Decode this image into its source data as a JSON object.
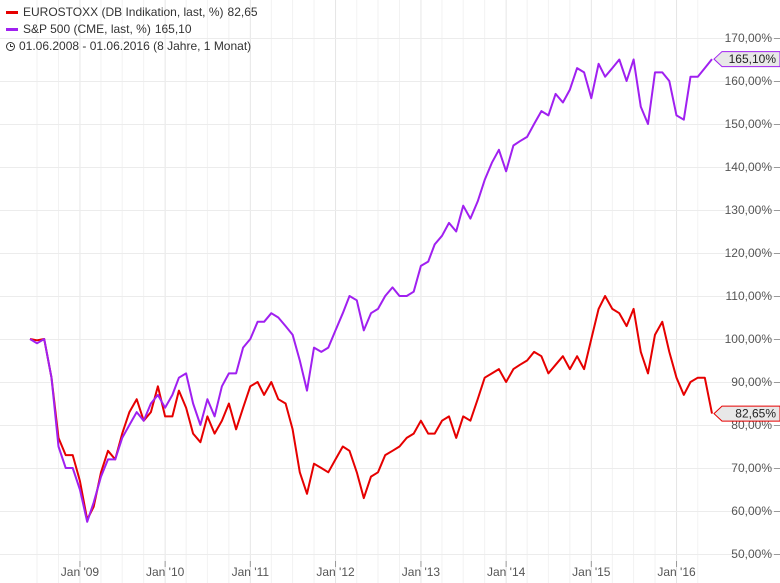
{
  "legend": {
    "series1": {
      "name": "EUROSTOXX (DB Indikation, last, %)",
      "value": "82,65",
      "color": "#e60000"
    },
    "series2": {
      "name": "S&P 500 (CME, last, %)",
      "value": "165,10",
      "color": "#a020f0"
    },
    "period": "01.06.2008 - 01.06.2016 (8 Jahre, 1 Monat)",
    "period_icon": "clock-icon"
  },
  "chart_data": {
    "type": "line",
    "x_ticks": [
      "Jan '09",
      "Jan '10",
      "Jan '11",
      "Jan '12",
      "Jan '13",
      "Jan '14",
      "Jan '15",
      "Jan '16"
    ],
    "y_ticks": [
      "50,00%",
      "60,00%",
      "70,00%",
      "80,00%",
      "90,00%",
      "100,00%",
      "110,00%",
      "120,00%",
      "130,00%",
      "140,00%",
      "150,00%",
      "160,00%",
      "170,00%"
    ],
    "ylim": [
      50,
      170
    ],
    "xlim": [
      "2008-06-01",
      "2016-06-01"
    ],
    "grid": true,
    "series": [
      {
        "name": "EUROSTOXX (DB Indikation, last, %)",
        "color": "#e60000",
        "last_label": "82,65%",
        "points": [
          [
            "2008-06-01",
            100
          ],
          [
            "2008-07-01",
            99.7
          ],
          [
            "2008-08-01",
            100
          ],
          [
            "2008-09-01",
            91
          ],
          [
            "2008-10-01",
            77
          ],
          [
            "2008-11-01",
            73
          ],
          [
            "2008-12-01",
            73
          ],
          [
            "2009-01-01",
            67
          ],
          [
            "2009-02-01",
            58
          ],
          [
            "2009-03-01",
            61
          ],
          [
            "2009-04-01",
            69
          ],
          [
            "2009-05-01",
            74
          ],
          [
            "2009-06-01",
            72
          ],
          [
            "2009-07-01",
            78
          ],
          [
            "2009-08-01",
            83
          ],
          [
            "2009-09-01",
            86
          ],
          [
            "2009-10-01",
            81
          ],
          [
            "2009-11-01",
            83
          ],
          [
            "2009-12-01",
            89
          ],
          [
            "2010-01-01",
            82
          ],
          [
            "2010-02-01",
            82
          ],
          [
            "2010-03-01",
            88
          ],
          [
            "2010-04-01",
            84
          ],
          [
            "2010-05-01",
            78
          ],
          [
            "2010-06-01",
            76
          ],
          [
            "2010-07-01",
            82
          ],
          [
            "2010-08-01",
            78
          ],
          [
            "2010-09-01",
            81
          ],
          [
            "2010-10-01",
            85
          ],
          [
            "2010-11-01",
            79
          ],
          [
            "2010-12-01",
            84
          ],
          [
            "2011-01-01",
            89
          ],
          [
            "2011-02-01",
            90
          ],
          [
            "2011-03-01",
            87
          ],
          [
            "2011-04-01",
            90
          ],
          [
            "2011-05-01",
            86
          ],
          [
            "2011-06-01",
            85
          ],
          [
            "2011-07-01",
            79
          ],
          [
            "2011-08-01",
            69
          ],
          [
            "2011-09-01",
            64
          ],
          [
            "2011-10-01",
            71
          ],
          [
            "2011-11-01",
            70
          ],
          [
            "2011-12-01",
            69
          ],
          [
            "2012-01-01",
            72
          ],
          [
            "2012-02-01",
            75
          ],
          [
            "2012-03-01",
            74
          ],
          [
            "2012-04-01",
            69
          ],
          [
            "2012-05-01",
            63
          ],
          [
            "2012-06-01",
            68
          ],
          [
            "2012-07-01",
            69
          ],
          [
            "2012-08-01",
            73
          ],
          [
            "2012-09-01",
            74
          ],
          [
            "2012-10-01",
            75
          ],
          [
            "2012-11-01",
            77
          ],
          [
            "2012-12-01",
            78
          ],
          [
            "2013-01-01",
            81
          ],
          [
            "2013-02-01",
            78
          ],
          [
            "2013-03-01",
            78
          ],
          [
            "2013-04-01",
            81
          ],
          [
            "2013-05-01",
            82
          ],
          [
            "2013-06-01",
            77
          ],
          [
            "2013-07-01",
            82
          ],
          [
            "2013-08-01",
            81
          ],
          [
            "2013-09-01",
            86
          ],
          [
            "2013-10-01",
            91
          ],
          [
            "2013-11-01",
            92
          ],
          [
            "2013-12-01",
            93
          ],
          [
            "2014-01-01",
            90
          ],
          [
            "2014-02-01",
            93
          ],
          [
            "2014-03-01",
            94
          ],
          [
            "2014-04-01",
            95
          ],
          [
            "2014-05-01",
            97
          ],
          [
            "2014-06-01",
            96
          ],
          [
            "2014-07-01",
            92
          ],
          [
            "2014-08-01",
            94
          ],
          [
            "2014-09-01",
            96
          ],
          [
            "2014-10-01",
            93
          ],
          [
            "2014-11-01",
            96
          ],
          [
            "2014-12-01",
            93
          ],
          [
            "2015-01-01",
            100
          ],
          [
            "2015-02-01",
            107
          ],
          [
            "2015-03-01",
            110
          ],
          [
            "2015-04-01",
            107
          ],
          [
            "2015-05-01",
            106
          ],
          [
            "2015-06-01",
            103
          ],
          [
            "2015-07-01",
            107
          ],
          [
            "2015-08-01",
            97
          ],
          [
            "2015-09-01",
            92
          ],
          [
            "2015-10-01",
            101
          ],
          [
            "2015-11-01",
            104
          ],
          [
            "2015-12-01",
            97
          ],
          [
            "2016-01-01",
            91
          ],
          [
            "2016-02-01",
            87
          ],
          [
            "2016-03-01",
            90
          ],
          [
            "2016-04-01",
            91
          ],
          [
            "2016-05-01",
            91
          ],
          [
            "2016-06-01",
            82.65
          ]
        ]
      },
      {
        "name": "S&P 500 (CME, last, %)",
        "color": "#a020f0",
        "last_label": "165,10%",
        "points": [
          [
            "2008-06-01",
            100
          ],
          [
            "2008-07-01",
            99
          ],
          [
            "2008-08-01",
            100
          ],
          [
            "2008-09-01",
            91
          ],
          [
            "2008-10-01",
            75
          ],
          [
            "2008-11-01",
            70
          ],
          [
            "2008-12-01",
            70
          ],
          [
            "2009-01-01",
            65
          ],
          [
            "2009-02-01",
            57.5
          ],
          [
            "2009-03-01",
            62
          ],
          [
            "2009-04-01",
            68
          ],
          [
            "2009-05-01",
            72
          ],
          [
            "2009-06-01",
            72
          ],
          [
            "2009-07-01",
            77
          ],
          [
            "2009-08-01",
            80
          ],
          [
            "2009-09-01",
            83
          ],
          [
            "2009-10-01",
            81
          ],
          [
            "2009-11-01",
            85
          ],
          [
            "2009-12-01",
            87
          ],
          [
            "2010-01-01",
            84
          ],
          [
            "2010-02-01",
            87
          ],
          [
            "2010-03-01",
            91
          ],
          [
            "2010-04-01",
            92
          ],
          [
            "2010-05-01",
            85
          ],
          [
            "2010-06-01",
            80
          ],
          [
            "2010-07-01",
            86
          ],
          [
            "2010-08-01",
            82
          ],
          [
            "2010-09-01",
            89
          ],
          [
            "2010-10-01",
            92
          ],
          [
            "2010-11-01",
            92
          ],
          [
            "2010-12-01",
            98
          ],
          [
            "2011-01-01",
            100
          ],
          [
            "2011-02-01",
            104
          ],
          [
            "2011-03-01",
            104
          ],
          [
            "2011-04-01",
            106
          ],
          [
            "2011-05-01",
            105
          ],
          [
            "2011-06-01",
            103
          ],
          [
            "2011-07-01",
            101
          ],
          [
            "2011-08-01",
            95
          ],
          [
            "2011-09-01",
            88
          ],
          [
            "2011-10-01",
            98
          ],
          [
            "2011-11-01",
            97
          ],
          [
            "2011-12-01",
            98
          ],
          [
            "2012-01-01",
            102
          ],
          [
            "2012-02-01",
            106
          ],
          [
            "2012-03-01",
            110
          ],
          [
            "2012-04-01",
            109
          ],
          [
            "2012-05-01",
            102
          ],
          [
            "2012-06-01",
            106
          ],
          [
            "2012-07-01",
            107
          ],
          [
            "2012-08-01",
            110
          ],
          [
            "2012-09-01",
            112
          ],
          [
            "2012-10-01",
            110
          ],
          [
            "2012-11-01",
            110
          ],
          [
            "2012-12-01",
            111
          ],
          [
            "2013-01-01",
            117
          ],
          [
            "2013-02-01",
            118
          ],
          [
            "2013-03-01",
            122
          ],
          [
            "2013-04-01",
            124
          ],
          [
            "2013-05-01",
            127
          ],
          [
            "2013-06-01",
            125
          ],
          [
            "2013-07-01",
            131
          ],
          [
            "2013-08-01",
            128
          ],
          [
            "2013-09-01",
            132
          ],
          [
            "2013-10-01",
            137
          ],
          [
            "2013-11-01",
            141
          ],
          [
            "2013-12-01",
            144
          ],
          [
            "2014-01-01",
            139
          ],
          [
            "2014-02-01",
            145
          ],
          [
            "2014-03-01",
            146
          ],
          [
            "2014-04-01",
            147
          ],
          [
            "2014-05-01",
            150
          ],
          [
            "2014-06-01",
            153
          ],
          [
            "2014-07-01",
            152
          ],
          [
            "2014-08-01",
            157
          ],
          [
            "2014-09-01",
            155
          ],
          [
            "2014-10-01",
            158
          ],
          [
            "2014-11-01",
            163
          ],
          [
            "2014-12-01",
            162
          ],
          [
            "2015-01-01",
            156
          ],
          [
            "2015-02-01",
            164
          ],
          [
            "2015-03-01",
            161
          ],
          [
            "2015-04-01",
            163
          ],
          [
            "2015-05-01",
            165
          ],
          [
            "2015-06-01",
            160
          ],
          [
            "2015-07-01",
            165
          ],
          [
            "2015-08-01",
            154
          ],
          [
            "2015-09-01",
            150
          ],
          [
            "2015-10-01",
            162
          ],
          [
            "2015-11-01",
            162
          ],
          [
            "2015-12-01",
            160
          ],
          [
            "2016-01-01",
            152
          ],
          [
            "2016-02-01",
            151
          ],
          [
            "2016-03-01",
            161
          ],
          [
            "2016-04-01",
            161
          ],
          [
            "2016-05-01",
            163
          ],
          [
            "2016-06-01",
            165.1
          ]
        ]
      }
    ]
  }
}
